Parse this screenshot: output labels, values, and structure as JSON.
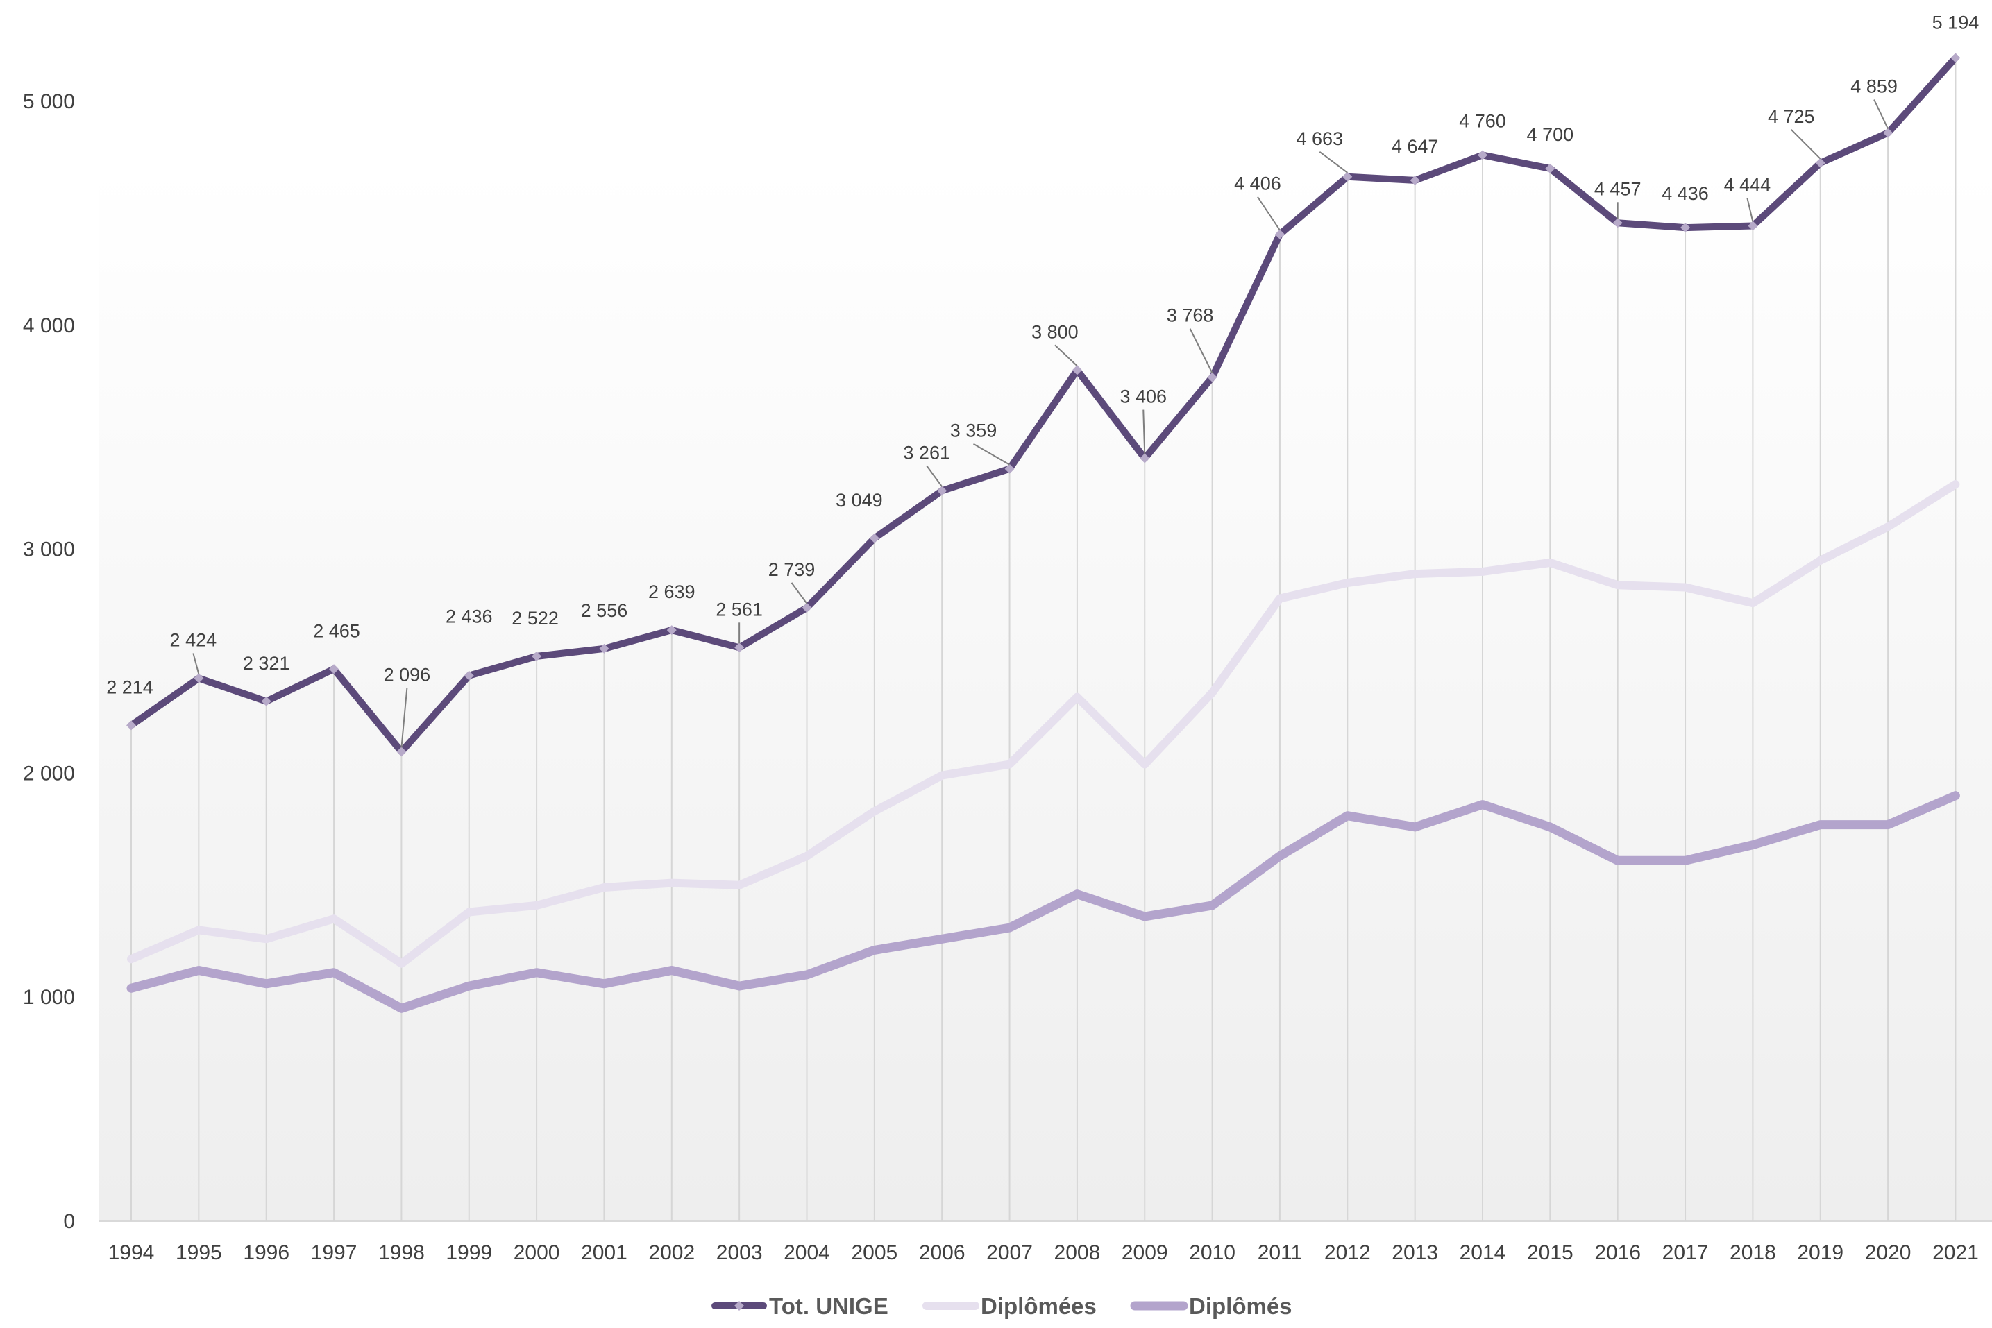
{
  "chart_data": {
    "type": "line",
    "title": "",
    "xlabel": "",
    "ylabel": "",
    "ylim": [
      0,
      5000
    ],
    "yticks": [
      0,
      1000,
      2000,
      3000,
      4000,
      5000
    ],
    "ytick_labels": [
      "0",
      "1 000",
      "2 000",
      "3 000",
      "4 000",
      "5 000"
    ],
    "grid": "vertical drop lines at each year",
    "legend_position": "bottom",
    "categories": [
      "1994",
      "1995",
      "1996",
      "1997",
      "1998",
      "1999",
      "2000",
      "2001",
      "2002",
      "2003",
      "2004",
      "2005",
      "2006",
      "2007",
      "2008",
      "2009",
      "2010",
      "2011",
      "2012",
      "2013",
      "2014",
      "2015",
      "2016",
      "2017",
      "2018",
      "2019",
      "2020",
      "2021"
    ],
    "series": [
      {
        "name": "Tot. UNIGE",
        "color": "#5c4a7a",
        "values": [
          2214,
          2424,
          2321,
          2465,
          2096,
          2436,
          2522,
          2556,
          2639,
          2561,
          2739,
          3049,
          3261,
          3359,
          3800,
          3406,
          3768,
          4406,
          4663,
          4647,
          4760,
          4700,
          4457,
          4436,
          4444,
          4725,
          4859,
          5194
        ],
        "labels": [
          "2 214",
          "2 424",
          "2 321",
          "2 465",
          "2 096",
          "2 436",
          "2 522",
          "2 556",
          "2 639",
          "2 561",
          "2 739",
          "3 049",
          "3 261",
          "3 359",
          "3 800",
          "3 406",
          "3 768",
          "4 406",
          "4 663",
          "4 647",
          "4 760",
          "4 700",
          "4 457",
          "4 436",
          "4 444",
          "4 725",
          "4 859",
          "5 194"
        ]
      },
      {
        "name": "Diplômées",
        "color": "#e6e0ee",
        "values": [
          1170,
          1300,
          1260,
          1350,
          1150,
          1380,
          1410,
          1490,
          1510,
          1500,
          1630,
          1830,
          1990,
          2040,
          2340,
          2040,
          2360,
          2780,
          2850,
          2890,
          2900,
          2940,
          2840,
          2830,
          2760,
          2950,
          3100,
          3290
        ]
      },
      {
        "name": "Diplômés",
        "color": "#b3a4cc",
        "values": [
          1040,
          1120,
          1060,
          1110,
          950,
          1050,
          1110,
          1060,
          1120,
          1050,
          1100,
          1210,
          1260,
          1310,
          1460,
          1360,
          1410,
          1630,
          1810,
          1760,
          1860,
          1760,
          1610,
          1610,
          1680,
          1770,
          1770,
          1900
        ]
      }
    ]
  }
}
